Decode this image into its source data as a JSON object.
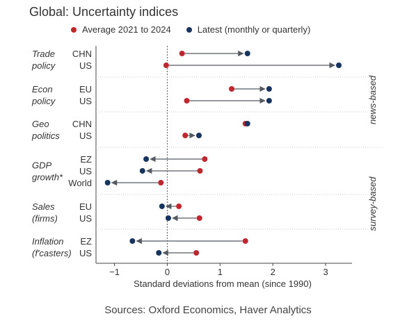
{
  "colors": {
    "average": "#c0262d",
    "latest": "#17345f",
    "arrow": "#555a60",
    "axis": "#444444",
    "separator": "#cccccc"
  },
  "chart_data": {
    "type": "dumbbell",
    "title": "Global: Uncertainty indices",
    "xlabel": "Standard deviations from mean (since 1990)",
    "xlim": [
      -1.35,
      3.5
    ],
    "xticks": [
      -1,
      0,
      1,
      2,
      3
    ],
    "xtick_labels": [
      "−1",
      "0",
      "1",
      "2",
      "3"
    ],
    "source": "Sources: Oxford Economics, Haver Analytics",
    "legend": {
      "average": "Average 2021 to 2024",
      "latest": "Latest (monthly or quarterly)"
    },
    "sections": [
      {
        "label": "news-based",
        "groups": [
          0,
          1,
          2
        ]
      },
      {
        "label": "survey-based",
        "groups": [
          3,
          4,
          5
        ]
      }
    ],
    "groups": [
      {
        "name": "Trade\npolicy",
        "rows": [
          {
            "label": "CHN",
            "average": 0.28,
            "latest": 1.52
          },
          {
            "label": "US",
            "average": -0.02,
            "latest": 3.25
          }
        ]
      },
      {
        "name": "Econ\npolicy",
        "rows": [
          {
            "label": "EU",
            "average": 1.22,
            "latest": 1.93
          },
          {
            "label": "US",
            "average": 0.37,
            "latest": 1.93
          }
        ]
      },
      {
        "name": "Geo\npolitics",
        "rows": [
          {
            "label": "CHN",
            "average": 1.48,
            "latest": 1.52
          },
          {
            "label": "US",
            "average": 0.34,
            "latest": 0.6
          }
        ]
      },
      {
        "name": "GDP\ngrowth*",
        "rows": [
          {
            "label": "EZ",
            "average": 0.71,
            "latest": -0.4
          },
          {
            "label": "US",
            "average": 0.62,
            "latest": -0.47
          },
          {
            "label": "World",
            "average": -0.12,
            "latest": -1.13
          }
        ]
      },
      {
        "name": "Sales\n(firms)",
        "rows": [
          {
            "label": "EU",
            "average": 0.22,
            "latest": -0.1
          },
          {
            "label": "US",
            "average": 0.61,
            "latest": 0.02
          }
        ]
      },
      {
        "name": "Inflation\n(f'casters)",
        "rows": [
          {
            "label": "EZ",
            "average": 1.48,
            "latest": -0.66
          },
          {
            "label": "US",
            "average": 0.55,
            "latest": -0.16
          }
        ]
      }
    ]
  }
}
